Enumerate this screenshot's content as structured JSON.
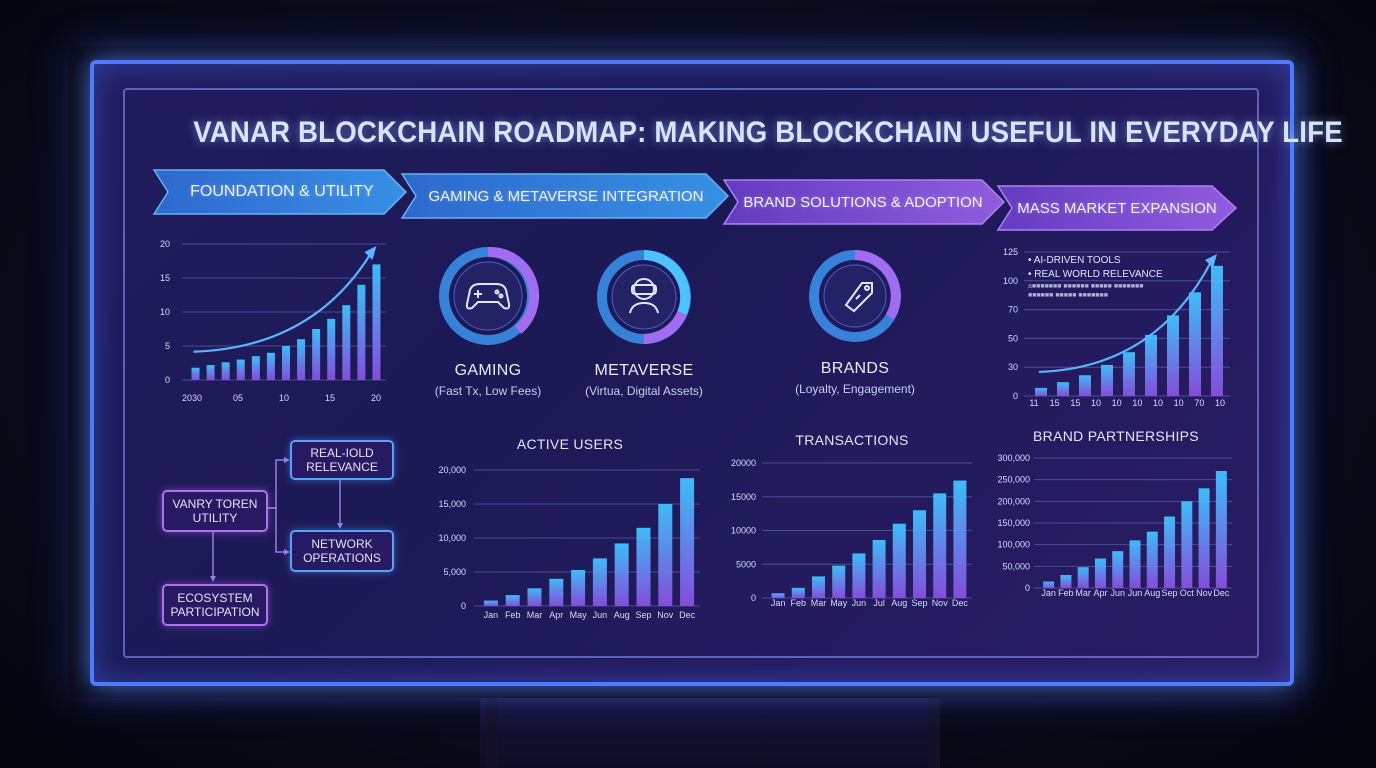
{
  "title": "VANAR BLOCKCHAIN ROADMAP: MAKING BLOCKCHAIN USEFUL IN EVERYDAY LIFE",
  "phases": [
    {
      "label": "FOUNDATION & UTILITY",
      "color": "#3f8fe8"
    },
    {
      "label": "GAMING & METAVERSE INTEGRATION",
      "color": "#3a7ee0"
    },
    {
      "label": "BRAND SOLUTIONS & ADOPTION",
      "color": "#7a4ed8"
    },
    {
      "label": "MASS MARKET EXPANSION",
      "color": "#8a56e2"
    }
  ],
  "rings": [
    {
      "name": "GAMING",
      "sub": "(Fast Tx, Low Fees)",
      "icon": "gamepad-icon"
    },
    {
      "name": "METAVERSE",
      "sub": "(Virtua, Digital Assets)",
      "icon": "vr-headset-icon"
    },
    {
      "name": "BRANDS",
      "sub": "(Loyalty, Engagement)",
      "icon": "tag-icon"
    }
  ],
  "flow": {
    "token": "VANRY TOREN UTILITY",
    "real_world": "REAL-IOLD RELEVANCE",
    "network": "NETWORK OPERATIONS",
    "ecosystem": "ECOSYSTEM PARTICIPATION"
  },
  "bullets": {
    "item1": "• AI-DRIVEN TOOLS",
    "item2": "• REAL WORLD RELEVANCE",
    "fine1": "a■■■■■■■ ■■■■■■ ■■■■■ ■■■■■■■",
    "fine2": "■■■■■■ ■■■■■ ■■■■■■■"
  },
  "colors": {
    "bar_top": "#3fc4ff",
    "bar_bottom": "#8a4fe0",
    "trend": "#5ab4ff"
  },
  "chart_data": [
    {
      "id": "foundation",
      "type": "bar",
      "title": "",
      "x_ticks": [
        "2030",
        "05",
        "10",
        "15",
        "20"
      ],
      "y_ticks": [
        "0",
        "5",
        "10",
        "15",
        "20"
      ],
      "ylim": [
        0,
        20
      ],
      "values": [
        1.8,
        2.2,
        2.6,
        3.0,
        3.5,
        4.0,
        5.0,
        6.0,
        7.5,
        9.0,
        11.0,
        14.0,
        17.0
      ],
      "trend": true
    },
    {
      "id": "active-users",
      "type": "bar",
      "title": "ACTIVE USERS",
      "categories": [
        "Jan",
        "Feb",
        "Mar",
        "Apr",
        "May",
        "Jun",
        "Aug",
        "Sep",
        "Nov",
        "Dec"
      ],
      "y_ticks": [
        "0",
        "5,000",
        "10,000",
        "15,000",
        "20,000"
      ],
      "ylim": [
        0,
        20000
      ],
      "values": [
        800,
        1600,
        2600,
        4000,
        5300,
        7000,
        9200,
        11500,
        15000,
        18800
      ]
    },
    {
      "id": "transactions",
      "type": "bar",
      "title": "TRANSACTIONS",
      "categories": [
        "Jan",
        "Feb",
        "Mar",
        "May",
        "Jun",
        "Jul",
        "Aug",
        "Sep",
        "Nov",
        "Dec"
      ],
      "y_ticks": [
        "0",
        "5000",
        "10000",
        "15000",
        "20000"
      ],
      "ylim": [
        0,
        20000
      ],
      "values": [
        700,
        1500,
        3200,
        4800,
        6600,
        8600,
        11000,
        13000,
        15500,
        17400
      ]
    },
    {
      "id": "brand-partnerships",
      "type": "bar",
      "title": "BRAND PARTNERSHIPS",
      "categories": [
        "Jan",
        "Feb",
        "Mar",
        "Apr",
        "Jun",
        "Jun",
        "Aug",
        "Sep",
        "Oct",
        "Nov",
        "Dec"
      ],
      "y_ticks": [
        "0",
        "50,000",
        "100,000",
        "150,000",
        "200,000",
        "250,000",
        "300,000"
      ],
      "ylim": [
        0,
        300000
      ],
      "values": [
        15000,
        30000,
        48000,
        68000,
        85000,
        110000,
        130000,
        165000,
        200000,
        230000,
        270000
      ]
    },
    {
      "id": "mass-market",
      "type": "bar",
      "title": "",
      "x_ticks": [
        "11",
        "15",
        "15",
        "10",
        "10",
        "10",
        "10",
        "10",
        "70",
        "10"
      ],
      "y_ticks": [
        "0",
        "30",
        "50",
        "70",
        "100",
        "125"
      ],
      "ylim": [
        0,
        125
      ],
      "values": [
        7,
        12,
        18,
        27,
        38,
        53,
        70,
        90,
        113
      ],
      "trend": true
    }
  ]
}
